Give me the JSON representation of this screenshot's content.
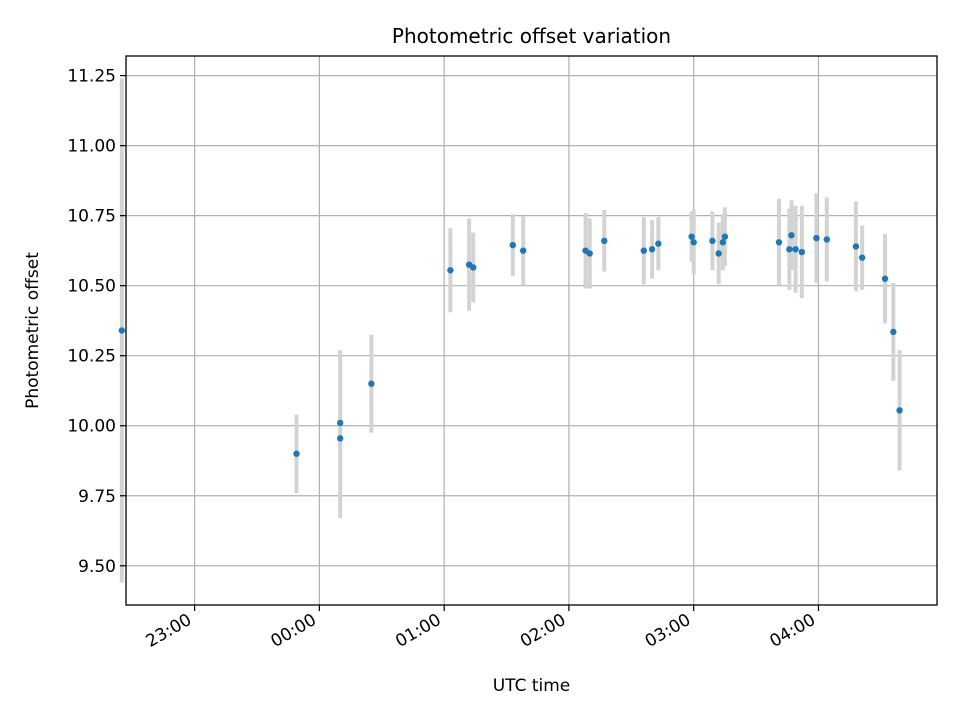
{
  "chart_data": {
    "type": "scatter",
    "title": "Photometric offset variation",
    "xlabel": "UTC time",
    "ylabel": "Photometric offset",
    "x_axis_type": "time",
    "xlim": [
      "22:27",
      "04:57"
    ],
    "ylim": [
      9.36,
      11.32
    ],
    "x_ticks": [
      "23:00",
      "00:00",
      "01:00",
      "02:00",
      "03:00",
      "04:00"
    ],
    "y_ticks": [
      "9.50",
      "9.75",
      "10.00",
      "10.25",
      "10.50",
      "10.75",
      "11.00",
      "11.25"
    ],
    "grid": true,
    "point_color": "#1f77b4",
    "errorbar_color": "#d3d3d3",
    "series": [
      {
        "points": [
          {
            "x": "22:25",
            "y": 10.34,
            "err": 0.9
          },
          {
            "x": "23:49",
            "y": 9.9,
            "err": 0.14
          },
          {
            "x": "00:10",
            "y": 10.01,
            "err": 0.26
          },
          {
            "x": "00:10",
            "y": 9.955,
            "err": 0.285
          },
          {
            "x": "00:25",
            "y": 10.15,
            "err": 0.175
          },
          {
            "x": "01:03",
            "y": 10.555,
            "err": 0.15
          },
          {
            "x": "01:12",
            "y": 10.575,
            "err": 0.165
          },
          {
            "x": "01:14",
            "y": 10.565,
            "err": 0.125
          },
          {
            "x": "01:33",
            "y": 10.645,
            "err": 0.11
          },
          {
            "x": "01:38",
            "y": 10.625,
            "err": 0.125
          },
          {
            "x": "02:08",
            "y": 10.625,
            "err": 0.135
          },
          {
            "x": "02:10",
            "y": 10.615,
            "err": 0.125
          },
          {
            "x": "02:17",
            "y": 10.66,
            "err": 0.11
          },
          {
            "x": "02:36",
            "y": 10.625,
            "err": 0.12
          },
          {
            "x": "02:40",
            "y": 10.63,
            "err": 0.105
          },
          {
            "x": "02:43",
            "y": 10.65,
            "err": 0.095
          },
          {
            "x": "02:59",
            "y": 10.675,
            "err": 0.09
          },
          {
            "x": "03:00",
            "y": 10.655,
            "err": 0.115
          },
          {
            "x": "03:09",
            "y": 10.66,
            "err": 0.105
          },
          {
            "x": "03:12",
            "y": 10.615,
            "err": 0.11
          },
          {
            "x": "03:14",
            "y": 10.655,
            "err": 0.1
          },
          {
            "x": "03:15",
            "y": 10.675,
            "err": 0.105
          },
          {
            "x": "03:41",
            "y": 10.655,
            "err": 0.155
          },
          {
            "x": "03:46",
            "y": 10.63,
            "err": 0.145
          },
          {
            "x": "03:47",
            "y": 10.68,
            "err": 0.125
          },
          {
            "x": "03:49",
            "y": 10.63,
            "err": 0.155
          },
          {
            "x": "03:52",
            "y": 10.62,
            "err": 0.165
          },
          {
            "x": "03:59",
            "y": 10.67,
            "err": 0.16
          },
          {
            "x": "04:04",
            "y": 10.665,
            "err": 0.15
          },
          {
            "x": "04:18",
            "y": 10.64,
            "err": 0.16
          },
          {
            "x": "04:21",
            "y": 10.6,
            "err": 0.115
          },
          {
            "x": "04:32",
            "y": 10.525,
            "err": 0.16
          },
          {
            "x": "04:36",
            "y": 10.335,
            "err": 0.175
          },
          {
            "x": "04:39",
            "y": 10.055,
            "err": 0.215
          }
        ]
      }
    ]
  }
}
